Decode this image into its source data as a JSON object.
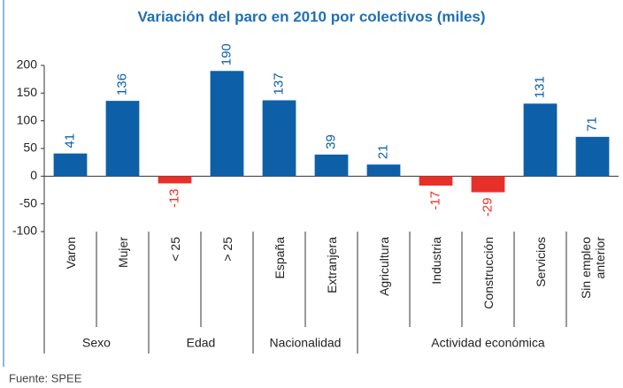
{
  "chart_data": {
    "type": "bar",
    "title": "Variación del paro en 2010 por colectivos (miles)",
    "categories": [
      "Varon",
      "Mujer",
      "< 25",
      "> 25",
      "España",
      "Extranjera",
      "Agricultura",
      "Industria",
      "Construcción",
      "Servicios",
      "Sin empleo anterior"
    ],
    "groups": [
      "Sexo",
      "Sexo",
      "Edad",
      "Edad",
      "Nacionalidad",
      "Nacionalidad",
      "Actividad económica",
      "Actividad económica",
      "Actividad económica",
      "Actividad económica",
      "Actividad económica"
    ],
    "values": [
      41,
      136,
      -13,
      190,
      137,
      39,
      21,
      -17,
      -29,
      131,
      71
    ],
    "color": "#0d60a8",
    "negative_color": "#e8302a",
    "ylim": [
      -100,
      200
    ],
    "yticks": [
      -100,
      -50,
      0,
      50,
      100,
      150,
      200
    ],
    "source": "Fuente: SPEE"
  }
}
